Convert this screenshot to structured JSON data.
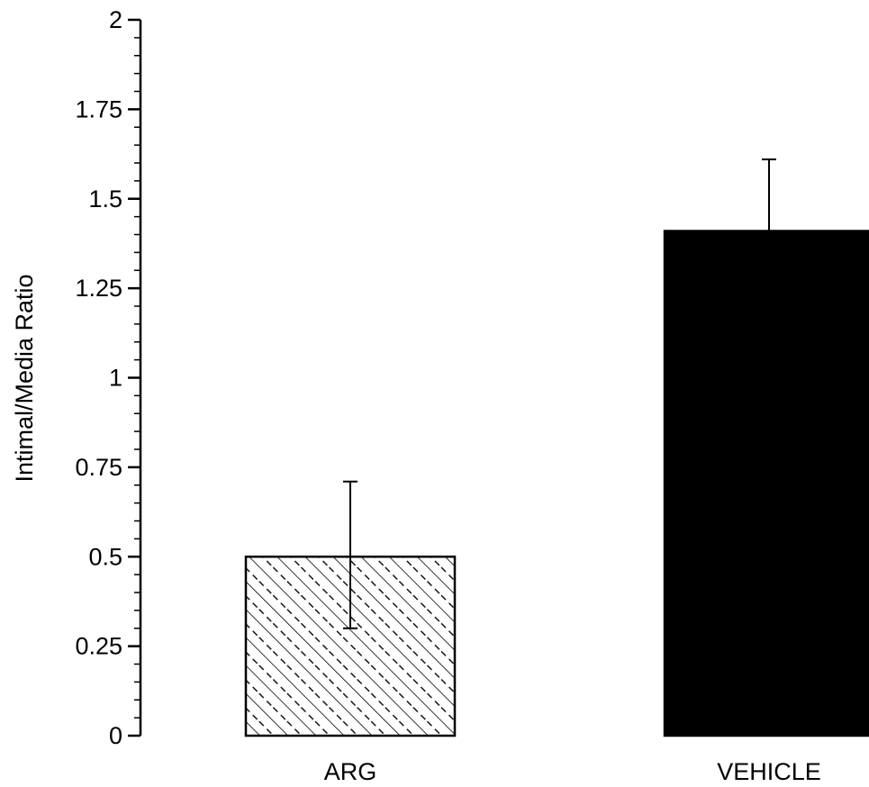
{
  "chart_data": {
    "type": "bar",
    "title": "",
    "xlabel": "",
    "ylabel": "Intimal/Media Ratio",
    "ylim": [
      0,
      2
    ],
    "yticks": [
      "0",
      "0.25",
      "0.5",
      "0.75",
      "1",
      "1.25",
      "1.5",
      "1.75",
      "2"
    ],
    "categories": [
      "ARG",
      "VEHICLE"
    ],
    "values": [
      0.5,
      1.41
    ],
    "error_upper": [
      0.71,
      1.61
    ],
    "error_lower": [
      0.3,
      1.41
    ],
    "fill_styles": [
      "hatched",
      "solid"
    ],
    "colors": {
      "bar": "#000000",
      "axis": "#000000"
    },
    "grid": false
  }
}
